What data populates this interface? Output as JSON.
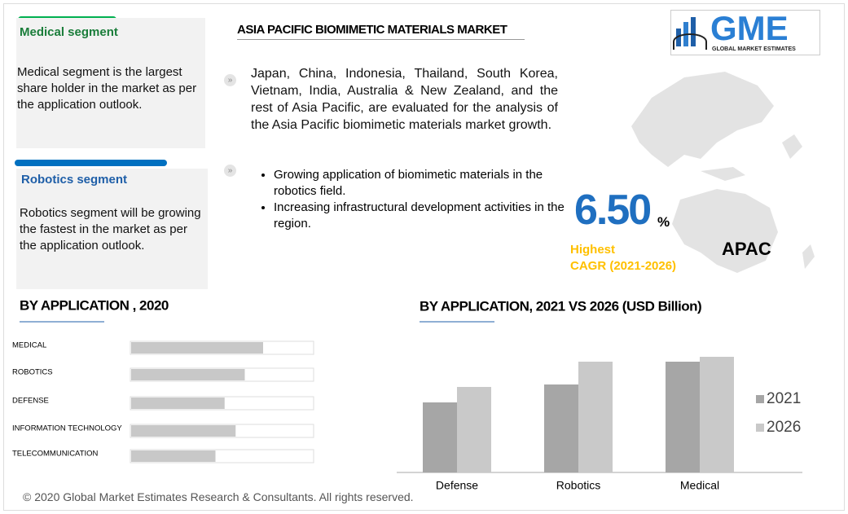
{
  "header": {
    "title": "ASIA PACIFIC BIOMIMETIC MATERIALS MARKET"
  },
  "logo": {
    "name": "GME",
    "tagline": "GLOBAL MARKET ESTIMATES"
  },
  "segments": [
    {
      "title": "Medical segment",
      "text": "Medical segment is the largest share holder in the market as per the application outlook."
    },
    {
      "title": "Robotics segment",
      "text": "Robotics segment will be growing the fastest in the market as per the application outlook."
    }
  ],
  "overview": {
    "text": "Japan, China, Indonesia, Thailand, South Korea, Vietnam, India, Australia & New Zealand, and the rest of Asia Pacific, are evaluated for the analysis of the Asia Pacific biomimetic materials market  growth.",
    "bullets": [
      "Growing application of biomimetic materials in the robotics field.",
      "Increasing infrastructural development activities in the region."
    ]
  },
  "highlight": {
    "value": "6.50",
    "unit": "%",
    "label_1": "Highest",
    "label_2": "CAGR (2021-2026)",
    "region": "APAC"
  },
  "chart_data": [
    {
      "type": "hbar",
      "title": "BY APPLICATION , 2020",
      "categories": [
        "MEDICAL",
        "ROBOTICS",
        "DEFENSE",
        "INFORMATION TECHNOLOGY",
        "TELECOMMUNICATION"
      ],
      "values": [
        72,
        62,
        51,
        57,
        46
      ],
      "xlim": [
        0,
        100
      ],
      "color": "#c8c8c8"
    },
    {
      "type": "bar",
      "title": "BY APPLICATION,  2021 VS 2026 (USD Billion)",
      "categories": [
        "Defense",
        "Robotics",
        "Medical"
      ],
      "series": [
        {
          "name": "2021",
          "color": "#a6a6a6",
          "values": [
            86,
            108,
            136
          ]
        },
        {
          "name": "2026",
          "color": "#c9c9c9",
          "values": [
            105,
            136,
            142
          ]
        }
      ],
      "ylim": [
        0,
        160
      ]
    }
  ],
  "footer": "© 2020 Global Market Estimates Research & Consultants. All rights reserved."
}
